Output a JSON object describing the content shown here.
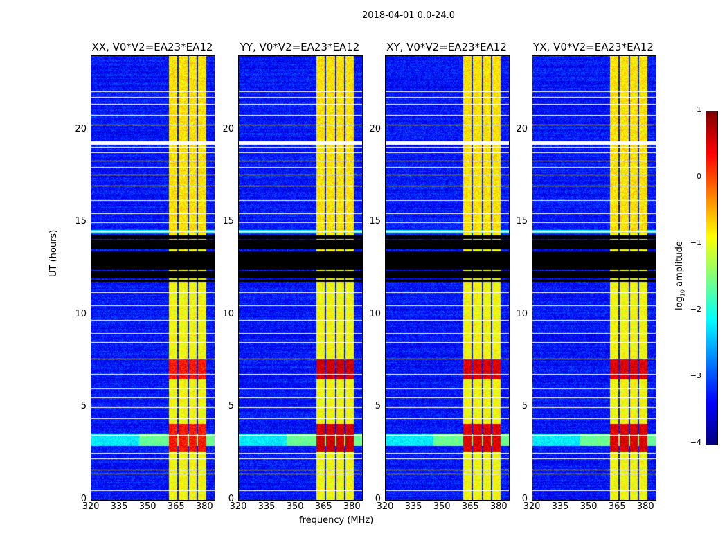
{
  "chart_data": {
    "type": "heatmap",
    "title": "2018-04-01 0.0-24.0",
    "xlabel": "frequency (MHz)",
    "ylabel": "UT (hours)",
    "xlim": [
      320,
      385
    ],
    "ylim": [
      0,
      24
    ],
    "xticks": [
      "320",
      "335",
      "350",
      "365",
      "380"
    ],
    "xtick_values": [
      320,
      335,
      350,
      365,
      380
    ],
    "yticks": [
      "0",
      "5",
      "10",
      "15",
      "20"
    ],
    "ytick_values": [
      0,
      5,
      10,
      15,
      20
    ],
    "panels": [
      {
        "title": "XX, V0*V2=EA23*EA12",
        "red_boost": 0.6
      },
      {
        "title": "YY, V0*V2=EA23*EA12",
        "red_boost": 1.0
      },
      {
        "title": "XY, V0*V2=EA23*EA12",
        "red_boost": 0.9
      },
      {
        "title": "YX, V0*V2=EA23*EA12",
        "red_boost": 0.9
      }
    ],
    "background_log_amplitude": -3.3,
    "rfi_bands_mhz": [
      [
        361,
        365.5
      ],
      [
        366.2,
        370.7
      ],
      [
        371.5,
        375.7
      ],
      [
        376.5,
        380.8
      ]
    ],
    "rfi_log_amplitude": -0.9,
    "strong_rfi_times_hours": [
      [
        2.6,
        4.1
      ],
      [
        6.5,
        7.6
      ]
    ],
    "broadband_times_hours": [
      [
        2.9,
        3.6
      ]
    ],
    "blanked_black_hours": [
      11.8,
      14.3
    ],
    "flagged_white_hours": [
      0.5,
      1.4,
      1.6,
      2.2,
      2.5,
      3.5,
      4.4,
      5.0,
      5.5,
      6.0,
      6.8,
      7.6,
      8.5,
      9.0,
      9.7,
      10.5,
      11.2,
      14.5,
      15.0,
      15.5,
      16.2,
      17.0,
      17.6,
      18.0,
      18.35,
      18.8,
      19.1,
      19.3,
      20.3,
      20.8,
      21.4,
      21.8,
      22.1
    ],
    "colorbar": {
      "label": "log10 amplitude",
      "range": [
        -4,
        1
      ],
      "ticks": [
        "−4",
        "−3",
        "−2",
        "−1",
        "0",
        "1"
      ],
      "tick_values": [
        -4,
        -3,
        -2,
        -1,
        0,
        1
      ],
      "colormap": "jet"
    }
  }
}
